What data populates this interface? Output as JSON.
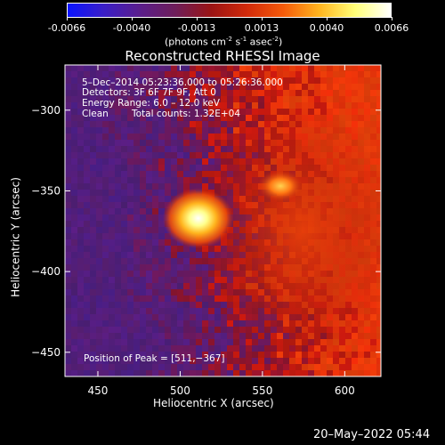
{
  "colorbar": {
    "tick_labels": [
      "-0.0066",
      "-0.0040",
      "-0.0013",
      "0.0013",
      "0.0040",
      "0.0066"
    ],
    "units_main": "(photons cm",
    "units_exp1": "-2",
    "units_mid": " s",
    "units_exp2": "-1",
    "units_end": " asec",
    "units_exp3": "-2",
    "units_close": ")",
    "colors": [
      "#0a14ff",
      "#3a1ec8",
      "#5a1e8c",
      "#6e1e5a",
      "#9a1414",
      "#d22a0a",
      "#f55a0a",
      "#ffb41e",
      "#ffff78",
      "#ffffff"
    ]
  },
  "chart_data": {
    "type": "heatmap",
    "title": "Reconstructed RHESSI Image",
    "xlabel": "Heliocentric X (arcsec)",
    "ylabel": "Heliocentric Y (arcsec)",
    "xlim": [
      430,
      622
    ],
    "ylim": [
      -465,
      -272
    ],
    "x_ticks": [
      450,
      500,
      550,
      600
    ],
    "y_ticks": [
      -300,
      -350,
      -400,
      -450
    ],
    "x_tick_labels": [
      "450",
      "500",
      "550",
      "600"
    ],
    "y_tick_labels": [
      "−300",
      "−350",
      "−400",
      "−450"
    ],
    "peak": {
      "x": 511,
      "y": -367
    },
    "secondary_source": {
      "x": 561,
      "y": -347
    },
    "annotations": {
      "time_range": "5–Dec–2014 05:23:36.000 to 05:26:36.000",
      "detectors": "Detectors: 3F 6F 7F 9F, Att 0",
      "energy": "Energy Range: 6.0 – 12.0 keV",
      "clean_label": "Clean",
      "total_counts": "Total counts: 1.32E+04",
      "peak_position": "Position of Peak = [511,−367]"
    }
  },
  "footer": {
    "timestamp": "20–May–2022 05:44"
  }
}
